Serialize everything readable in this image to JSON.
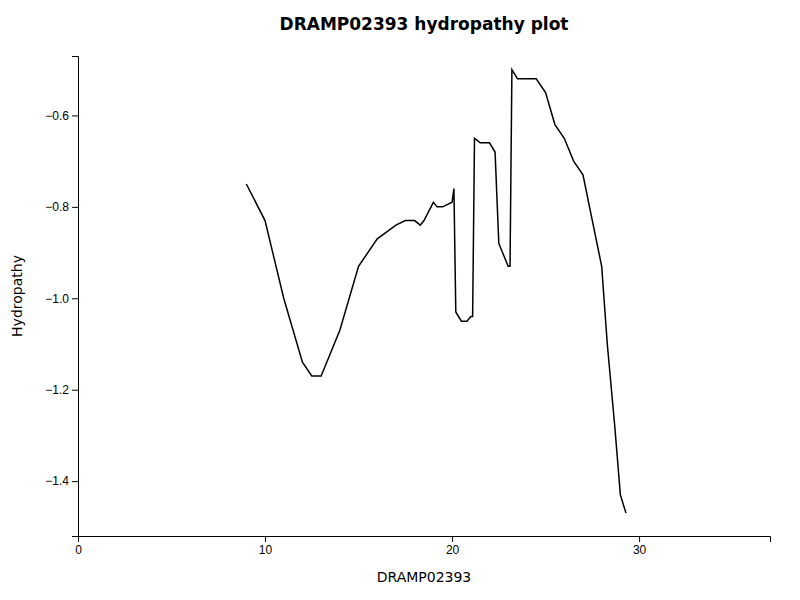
{
  "chart_data": {
    "type": "line",
    "title": "DRAMP02393 hydropathy plot",
    "xlabel": "DRAMP02393",
    "ylabel": "Hydropathy",
    "x": [
      9,
      10,
      11,
      12,
      12.5,
      13,
      14,
      15,
      16,
      17,
      17.5,
      18,
      18.3,
      18.5,
      19,
      19.2,
      19.5,
      20,
      20.1,
      20.2,
      20.5,
      20.8,
      21,
      21.1,
      21.2,
      21.5,
      22,
      22.3,
      22.5,
      23,
      23.1,
      23.2,
      23.5,
      24,
      24.1,
      24.5,
      25,
      25.5,
      26,
      26.5,
      27,
      27.5,
      28,
      28.3,
      28.7,
      29,
      29.3
    ],
    "values": [
      -0.75,
      -0.83,
      -1.0,
      -1.14,
      -1.17,
      -1.17,
      -1.07,
      -0.93,
      -0.87,
      -0.84,
      -0.83,
      -0.83,
      -0.84,
      -0.83,
      -0.79,
      -0.8,
      -0.8,
      -0.79,
      -0.76,
      -1.03,
      -1.05,
      -1.05,
      -1.04,
      -1.04,
      -0.65,
      -0.66,
      -0.66,
      -0.68,
      -0.88,
      -0.93,
      -0.93,
      -0.5,
      -0.52,
      -0.52,
      -0.52,
      -0.52,
      -0.55,
      -0.62,
      -0.65,
      -0.7,
      -0.73,
      -0.83,
      -0.93,
      -1.1,
      -1.28,
      -1.43,
      -1.47
    ],
    "color": "#000000",
    "xlim": [
      0,
      37
    ],
    "ylim": [
      -1.52,
      -0.47
    ],
    "xticks": [
      0,
      10,
      20,
      30
    ],
    "yticks": [
      {
        "value": -1.4,
        "label": "−1.4"
      },
      {
        "value": -1.2,
        "label": "−1.2"
      },
      {
        "value": -1.0,
        "label": "−1.0"
      },
      {
        "value": -0.8,
        "label": "−0.8"
      },
      {
        "value": -0.6,
        "label": "−0.6"
      }
    ]
  }
}
